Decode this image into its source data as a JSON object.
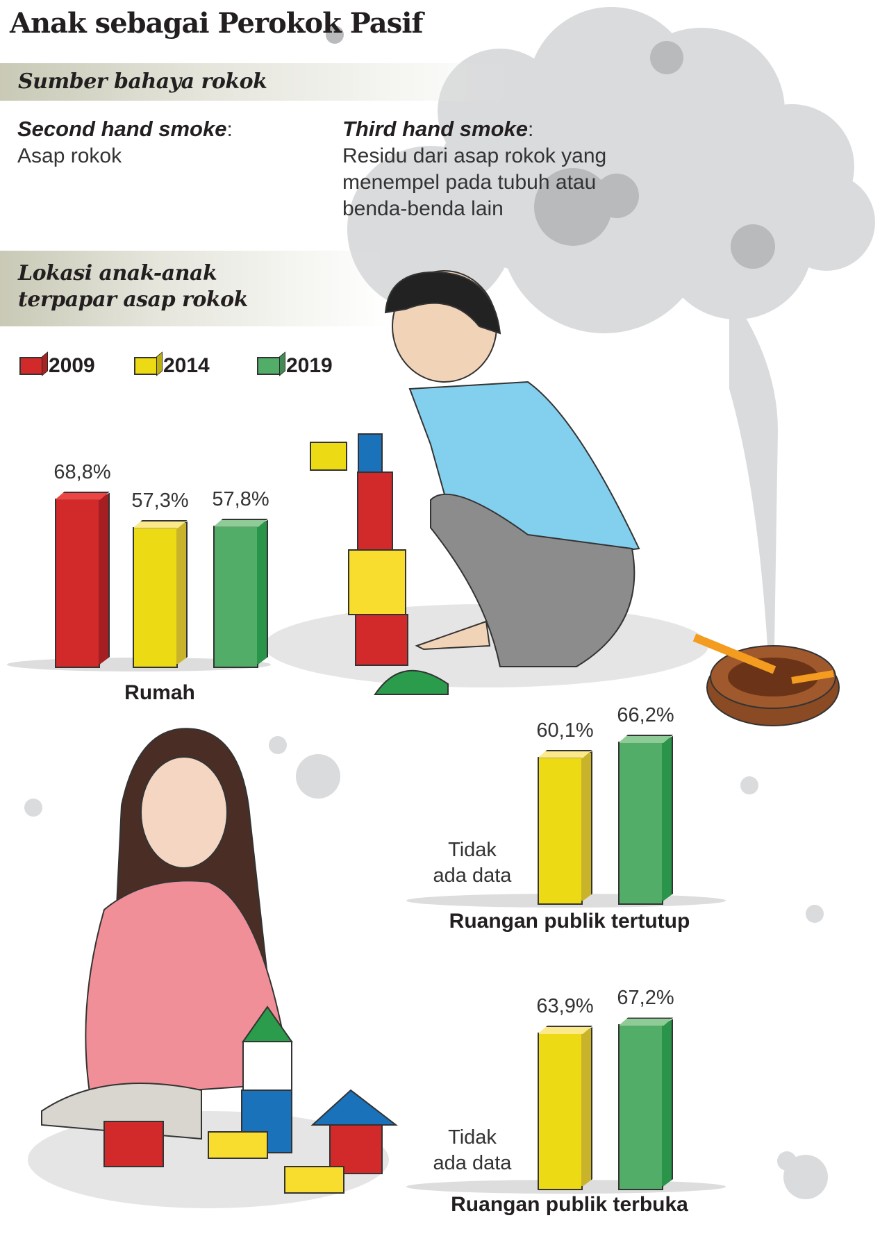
{
  "title": "Anak sebagai Perokok Pasif",
  "section1": {
    "heading": "Sumber bahaya rokok",
    "second": {
      "term": "Second hand smoke",
      "colon": ":",
      "desc": "Asap rokok"
    },
    "third": {
      "term": "Third hand smoke",
      "colon": ":",
      "desc_lines": [
        "Residu dari asap rokok yang",
        "menempel pada tubuh atau",
        "benda-benda lain"
      ]
    }
  },
  "section2": {
    "heading_lines": [
      "Lokasi anak-anak",
      "terpapar asap rokok"
    ]
  },
  "colors": {
    "2009": "#d22a2a",
    "2014": "#ecdb14",
    "2019": "#52ad68",
    "smoke": "#dadbdd"
  },
  "chart_data": {
    "type": "bar",
    "legend": [
      "2009",
      "2014",
      "2019"
    ],
    "legend_placement": "top-left",
    "groups": [
      {
        "label": "Rumah",
        "values": {
          "2009": 68.8,
          "2014": 57.3,
          "2019": 57.8
        },
        "labels": {
          "2009": "68,8%",
          "2014": "57,3%",
          "2019": "57,8%"
        }
      },
      {
        "label": "Ruangan publik tertutup",
        "values": {
          "2009": null,
          "2014": 60.1,
          "2019": 66.2
        },
        "labels": {
          "2014": "60,1%",
          "2019": "66,2%"
        },
        "nodata_lines": [
          "Tidak",
          "ada data"
        ]
      },
      {
        "label": "Ruangan publik terbuka",
        "values": {
          "2009": null,
          "2014": 63.9,
          "2019": 67.2
        },
        "labels": {
          "2014": "63,9%",
          "2019": "67,2%"
        },
        "nodata_lines": [
          "Tidak",
          "ada data"
        ]
      }
    ]
  }
}
